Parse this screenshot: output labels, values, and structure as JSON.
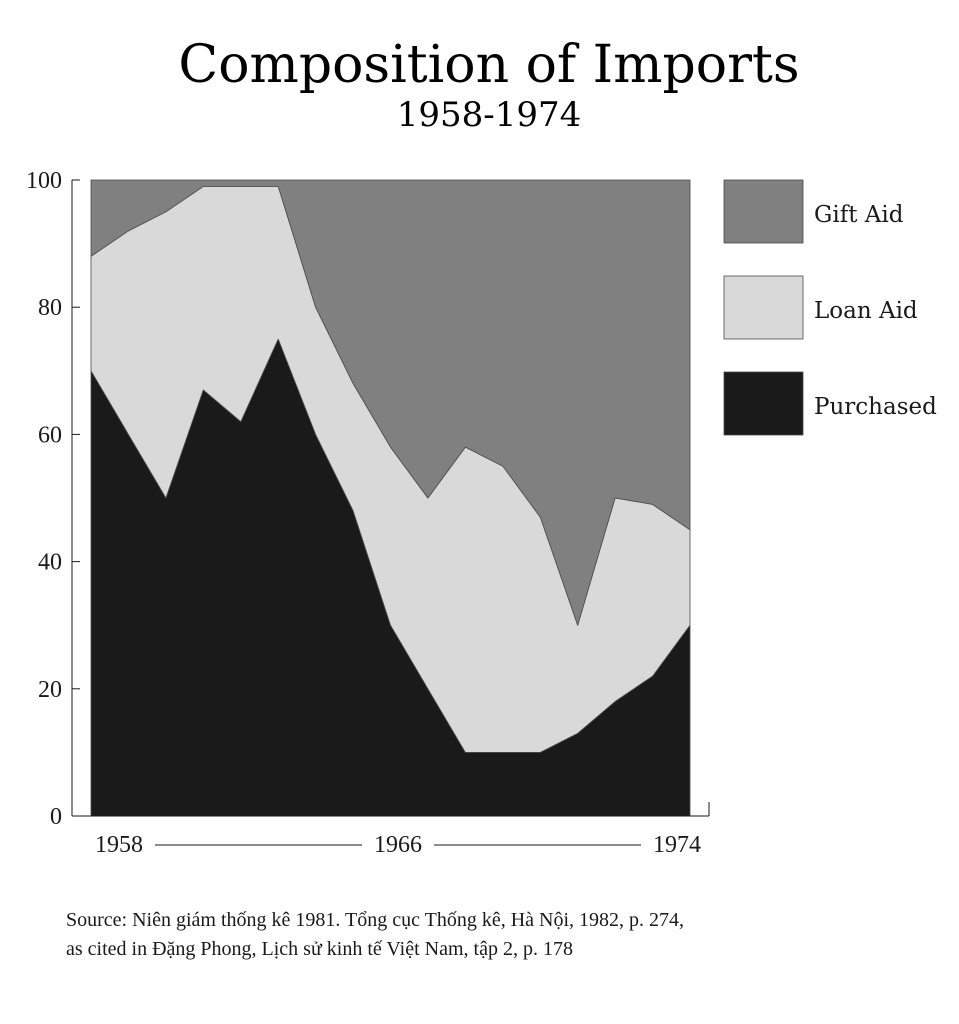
{
  "chart_data": {
    "type": "area",
    "stacked": true,
    "title": "Composition of Imports",
    "subtitle": "1958-1974",
    "x": [
      1958,
      1959,
      1960,
      1961,
      1962,
      1963,
      1964,
      1965,
      1966,
      1967,
      1968,
      1969,
      1970,
      1971,
      1972,
      1973,
      1974
    ],
    "series": [
      {
        "name": "Purchased",
        "color": "#1a1a1a",
        "values": [
          70,
          60,
          50,
          67,
          62,
          75,
          60,
          48,
          30,
          20,
          10,
          10,
          10,
          13,
          18,
          22,
          30
        ]
      },
      {
        "name": "Loan Aid",
        "color": "#d9d9d9",
        "values": [
          18,
          32,
          45,
          32,
          37,
          24,
          20,
          20,
          28,
          30,
          48,
          45,
          37,
          17,
          32,
          27,
          15
        ]
      },
      {
        "name": "Gift Aid",
        "color": "#808080",
        "values": [
          12,
          8,
          5,
          1,
          1,
          1,
          20,
          32,
          42,
          50,
          42,
          45,
          53,
          70,
          50,
          51,
          55
        ]
      }
    ],
    "ylim": [
      0,
      100
    ],
    "yticks": [
      "0",
      "20",
      "40",
      "60",
      "80",
      "100"
    ],
    "xtick_labels": [
      "1958",
      "1966",
      "1974"
    ],
    "legend_position": "right",
    "grid": false
  },
  "source": {
    "line1": "Source: Niên giám thống kê 1981. Tổng cục Thống kê, Hà Nội, 1982, p. 274,",
    "line2": "as cited in Đặng Phong, Lịch sử kinh tế Việt Nam, tập 2, p. 178"
  }
}
